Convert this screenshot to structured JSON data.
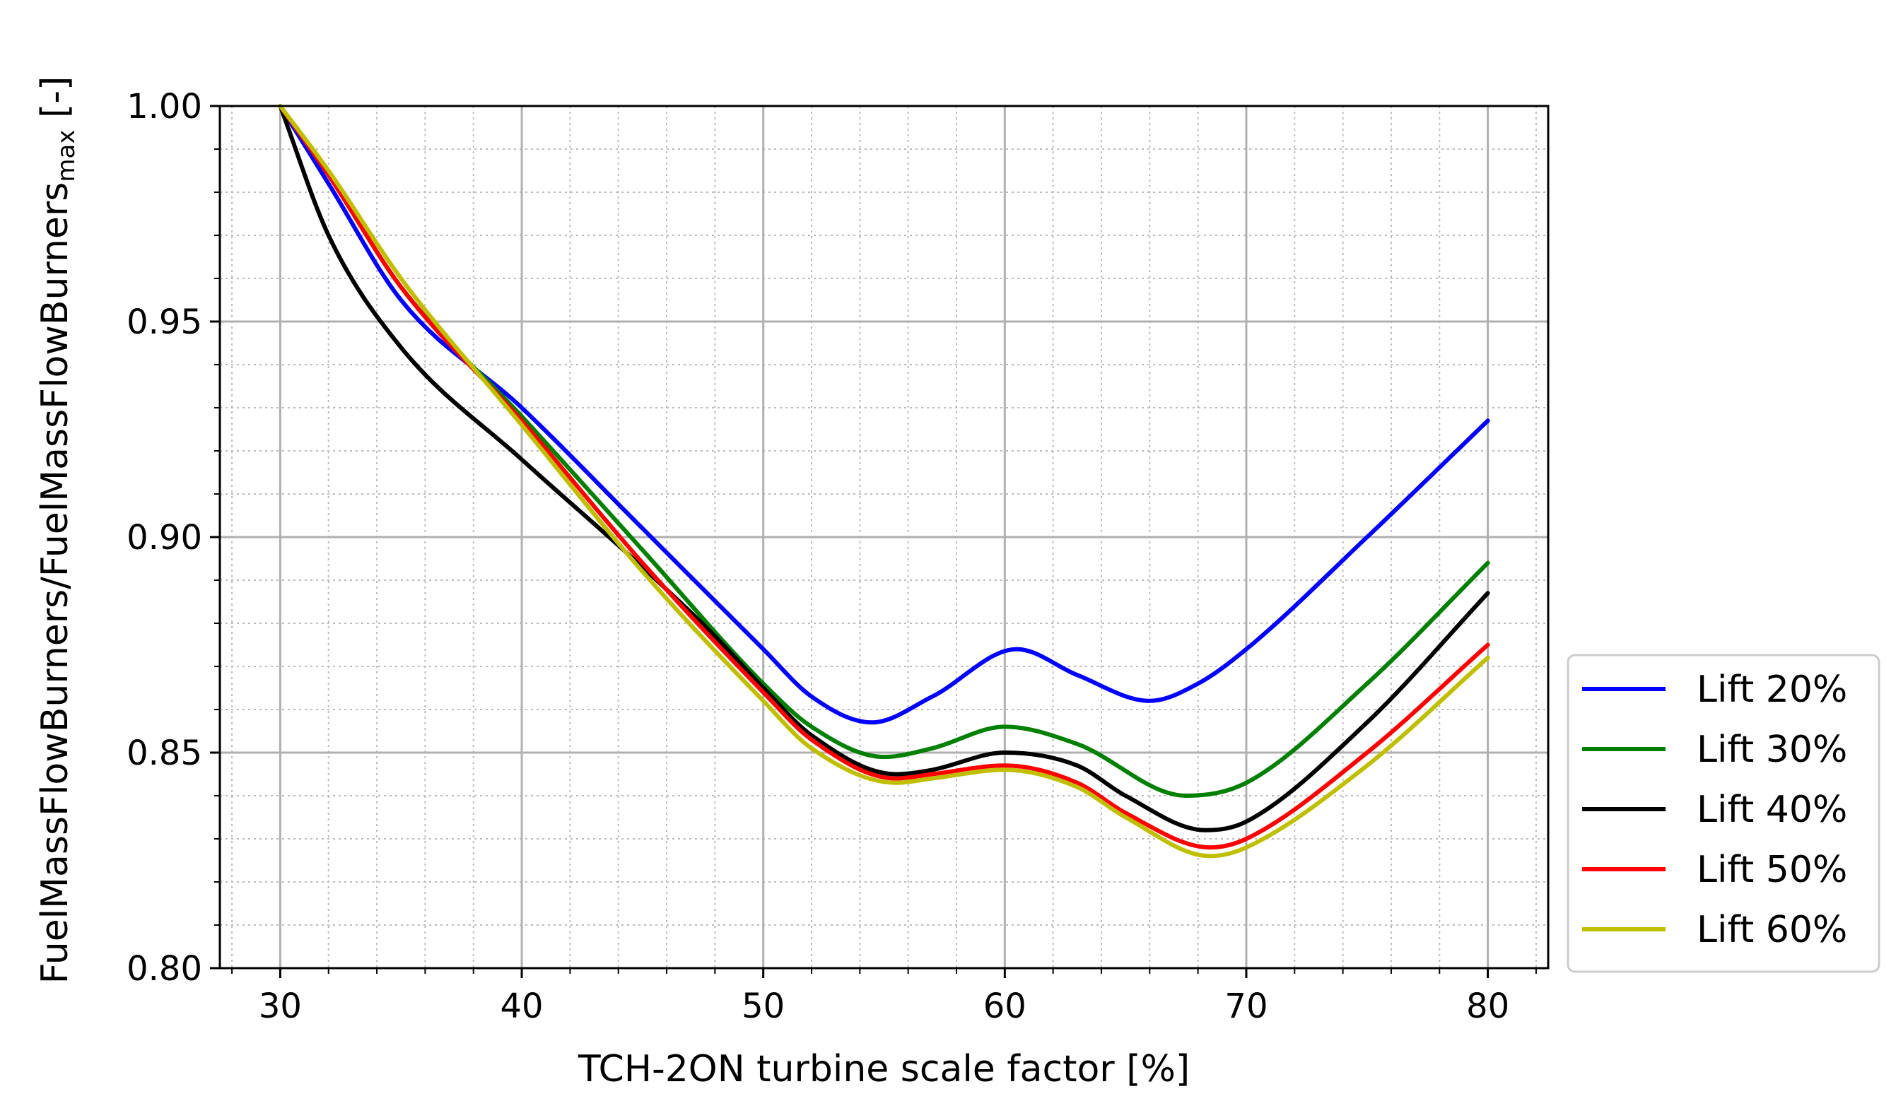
{
  "chart_data": {
    "type": "line",
    "title": "",
    "xlabel": "TCH-2ON turbine scale factor [%]",
    "ylabel_main": "FuelMassFlowBurners/FuelMassFlowBurners",
    "ylabel_sub": "max",
    "ylabel_suffix": " [-]",
    "xlim": [
      27.5,
      82.5
    ],
    "ylim": [
      0.8,
      1.0
    ],
    "xticks": [
      30,
      40,
      50,
      60,
      70,
      80
    ],
    "xtick_labels": [
      "30",
      "40",
      "50",
      "60",
      "70",
      "80"
    ],
    "yticks": [
      0.8,
      0.85,
      0.9,
      0.95,
      1.0
    ],
    "ytick_labels": [
      "0.80",
      "0.85",
      "0.90",
      "0.95",
      "1.00"
    ],
    "grid": "major and minor",
    "legend_position": "outside-right-bottom",
    "series": [
      {
        "name": "Lift 20%",
        "color": "#0000ff",
        "x": [
          30,
          32,
          35,
          40,
          45,
          50,
          52,
          54.5,
          57,
          60.5,
          63,
          66,
          68,
          70,
          75,
          80
        ],
        "y": [
          1.0,
          0.982,
          0.955,
          0.93,
          0.902,
          0.874,
          0.863,
          0.857,
          0.863,
          0.874,
          0.868,
          0.862,
          0.866,
          0.874,
          0.9,
          0.927
        ]
      },
      {
        "name": "Lift 30%",
        "color": "#008000",
        "x": [
          30,
          32,
          35,
          40,
          45,
          50,
          52,
          55,
          57,
          60,
          63,
          67.5,
          70,
          75,
          80
        ],
        "y": [
          1.0,
          0.984,
          0.958,
          0.928,
          0.897,
          0.866,
          0.856,
          0.849,
          0.851,
          0.856,
          0.852,
          0.84,
          0.843,
          0.866,
          0.894
        ]
      },
      {
        "name": "Lift 40%",
        "color": "#000000",
        "x": [
          30,
          32,
          35,
          40,
          45,
          48,
          50,
          52,
          55.5,
          57,
          60,
          63,
          65,
          68.3,
          70,
          75,
          80
        ],
        "y": [
          1.0,
          0.97,
          0.944,
          0.918,
          0.893,
          0.877,
          0.865,
          0.854,
          0.845,
          0.846,
          0.85,
          0.847,
          0.84,
          0.832,
          0.834,
          0.857,
          0.887
        ]
      },
      {
        "name": "Lift 50%",
        "color": "#ff0000",
        "x": [
          30,
          32,
          35,
          40,
          45,
          50,
          52,
          55.5,
          57,
          60,
          63,
          65,
          68.5,
          70,
          75,
          80
        ],
        "y": [
          1.0,
          0.984,
          0.958,
          0.927,
          0.894,
          0.864,
          0.853,
          0.844,
          0.845,
          0.847,
          0.843,
          0.836,
          0.828,
          0.83,
          0.85,
          0.875
        ]
      },
      {
        "name": "Lift 60%",
        "color": "#bfbf00",
        "x": [
          30,
          32,
          35,
          40,
          45,
          50,
          52,
          55.5,
          57,
          60,
          63,
          65,
          68.5,
          70,
          75,
          80
        ],
        "y": [
          1.0,
          0.985,
          0.96,
          0.926,
          0.892,
          0.862,
          0.851,
          0.843,
          0.844,
          0.846,
          0.842,
          0.835,
          0.826,
          0.828,
          0.847,
          0.872
        ]
      }
    ]
  }
}
